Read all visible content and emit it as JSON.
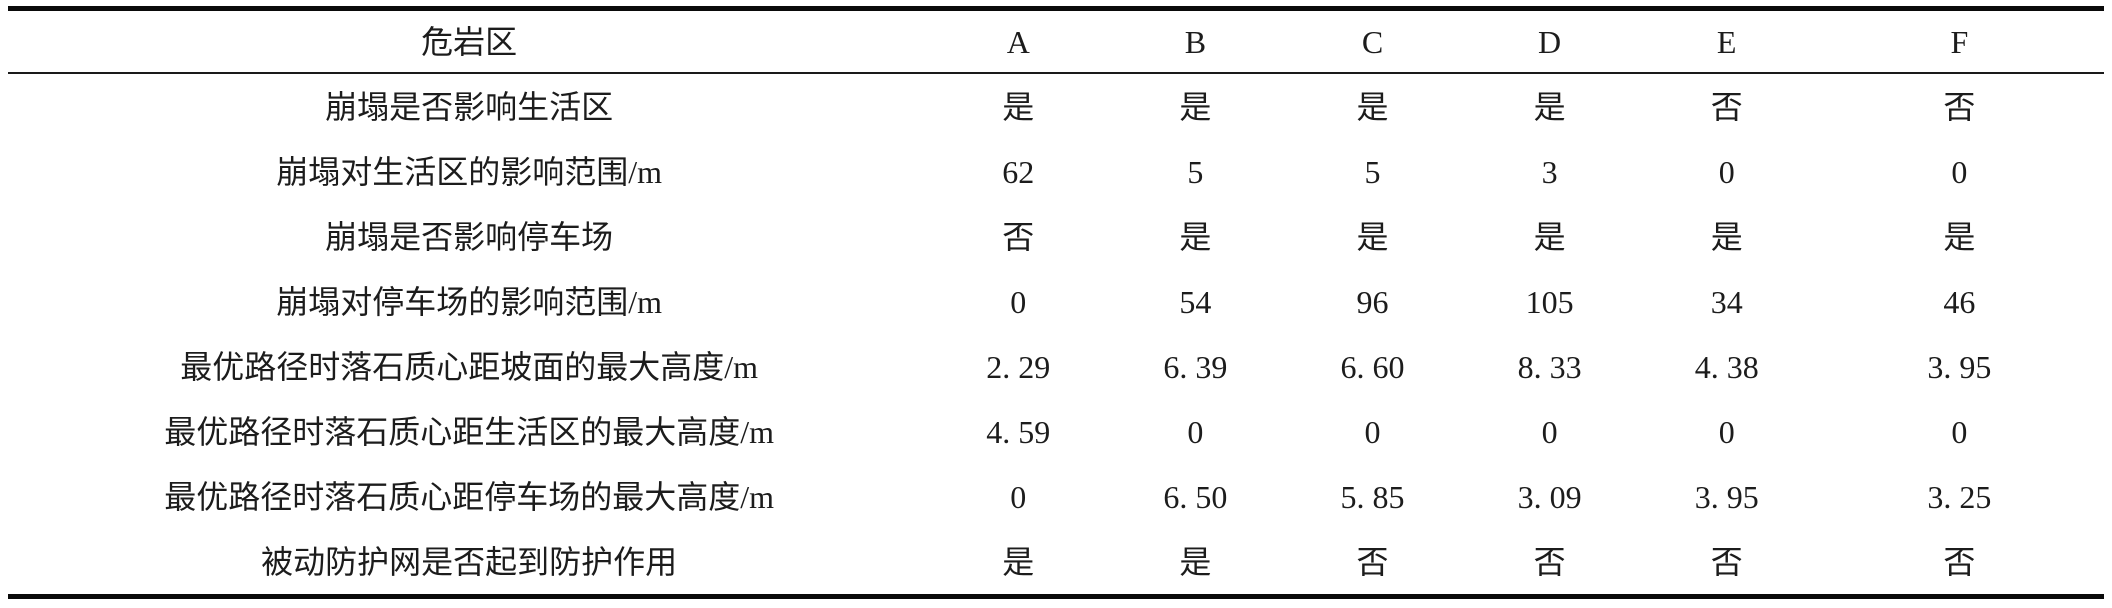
{
  "table": {
    "header": {
      "label": "危岩区",
      "columns": [
        "A",
        "B",
        "C",
        "D",
        "E",
        "F"
      ]
    },
    "rows": [
      {
        "label": "崩塌是否影响生活区",
        "values": [
          "是",
          "是",
          "是",
          "是",
          "否",
          "否"
        ]
      },
      {
        "label": "崩塌对生活区的影响范围/m",
        "values": [
          "62",
          "5",
          "5",
          "3",
          "0",
          "0"
        ]
      },
      {
        "label": "崩塌是否影响停车场",
        "values": [
          "否",
          "是",
          "是",
          "是",
          "是",
          "是"
        ]
      },
      {
        "label": "崩塌对停车场的影响范围/m",
        "values": [
          "0",
          "54",
          "96",
          "105",
          "34",
          "46"
        ]
      },
      {
        "label": "最优路径时落石质心距坡面的最大高度/m",
        "values": [
          "2. 29",
          "6. 39",
          "6. 60",
          "8. 33",
          "4. 38",
          "3. 95"
        ]
      },
      {
        "label": "最优路径时落石质心距生活区的最大高度/m",
        "values": [
          "4. 59",
          "0",
          "0",
          "0",
          "0",
          "0"
        ]
      },
      {
        "label": "最优路径时落石质心距停车场的最大高度/m",
        "values": [
          "0",
          "6. 50",
          "5. 85",
          "3. 09",
          "3. 95",
          "3. 25"
        ]
      },
      {
        "label": "被动防护网是否起到防护作用",
        "values": [
          "是",
          "是",
          "否",
          "否",
          "否",
          "否"
        ]
      }
    ]
  },
  "colors": {
    "text": "#1c1c1c",
    "rule": "#0a0a0a",
    "background": "#ffffff"
  }
}
